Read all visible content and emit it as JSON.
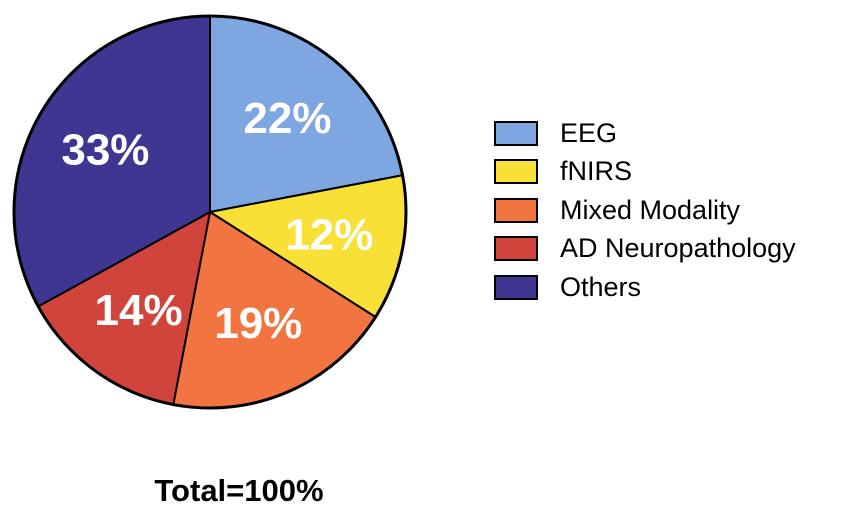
{
  "chart_data": {
    "type": "pie",
    "categories": [
      "EEG",
      "fNIRS",
      "Mixed Modality",
      "AD Neuropathology",
      "Others"
    ],
    "values": [
      22,
      12,
      19,
      14,
      33
    ],
    "value_labels": [
      "22%",
      "12%",
      "19%",
      "14%",
      "33%"
    ],
    "colors": [
      "#7ea6e0",
      "#f8e036",
      "#f27440",
      "#d0443c",
      "#3e3691"
    ],
    "start": "top (12 o'clock), clockwise",
    "legend_position": "right",
    "footer": "Total=100%"
  }
}
